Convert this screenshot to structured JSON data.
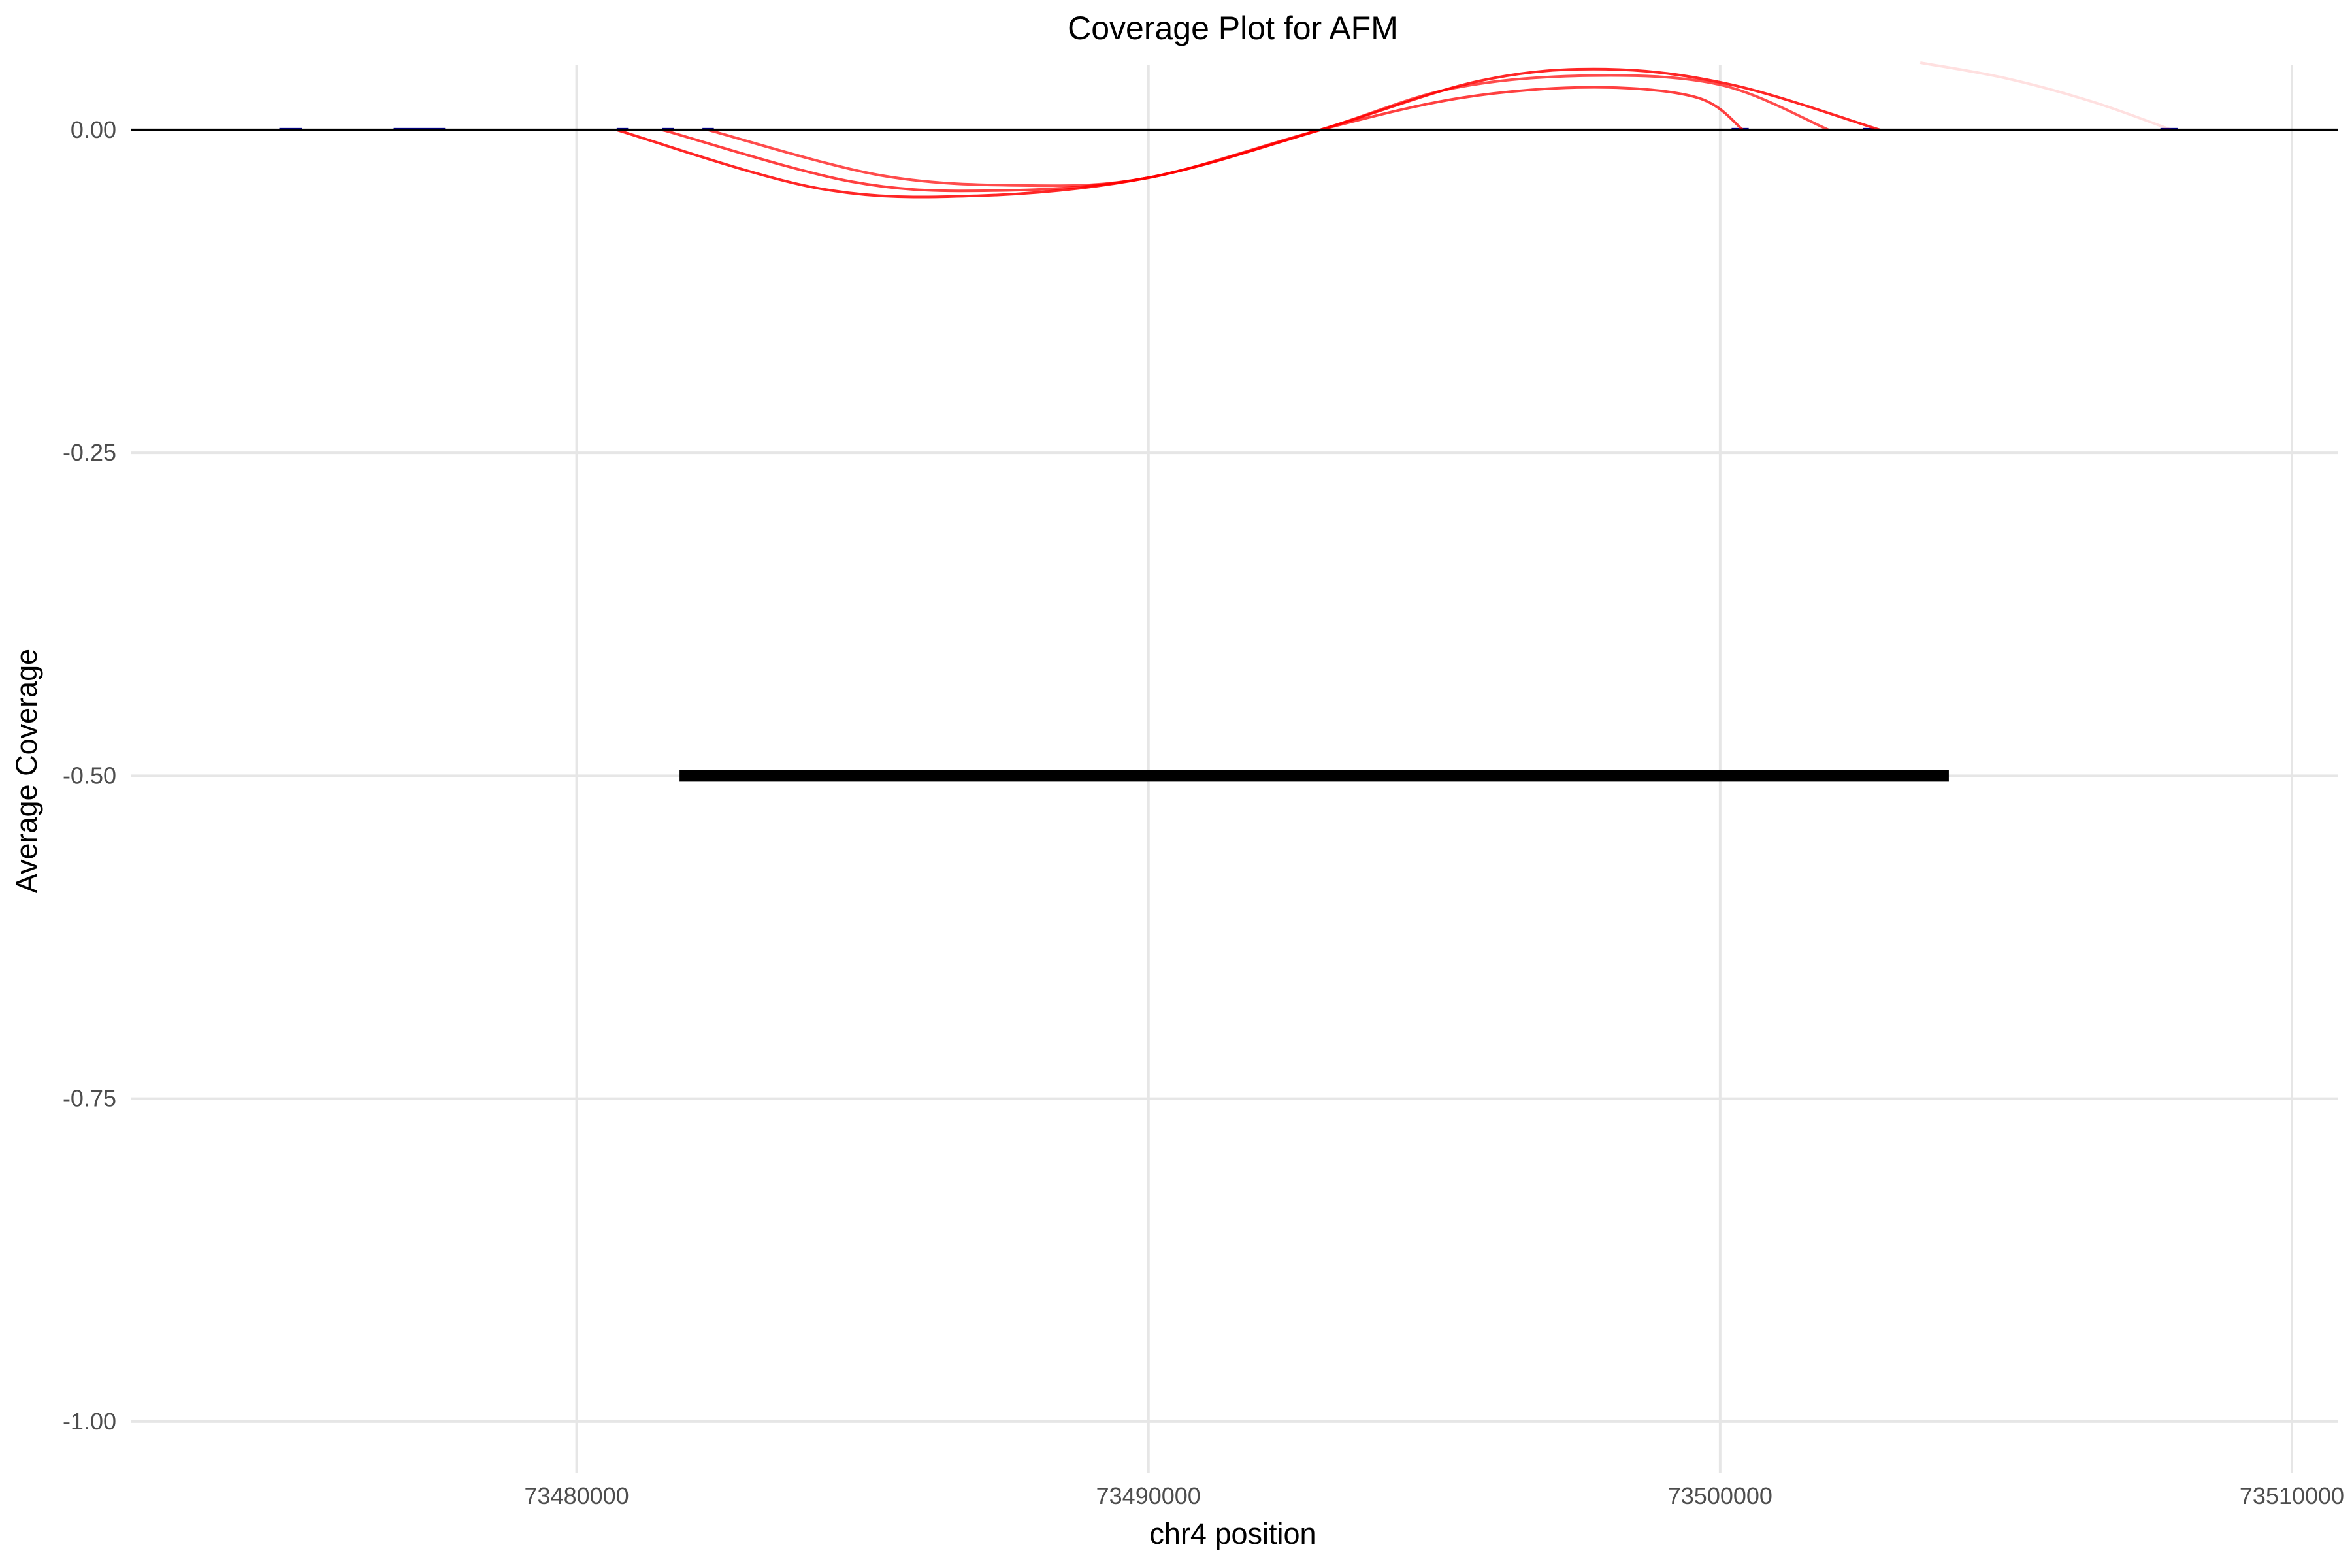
{
  "chart_data": {
    "type": "line",
    "title": "Coverage Plot for AFM",
    "xlabel": "chr4 position",
    "ylabel": "Average Coverage",
    "xlim": [
      73472200,
      73510800
    ],
    "ylim": [
      -1.04,
      0.05
    ],
    "x_ticks": [
      73480000,
      73490000,
      73500000,
      73510000
    ],
    "x_tick_labels": [
      "73480000",
      "73490000",
      "73500000",
      "73510000"
    ],
    "y_ticks": [
      0,
      -0.25,
      -0.5,
      -0.75,
      -1.0
    ],
    "y_tick_labels": [
      "0.00",
      "-0.25",
      "-0.50",
      "-0.75",
      "-1.00"
    ],
    "grid": true,
    "legend": "none",
    "baseline": {
      "y": 0,
      "color": "#000000"
    },
    "coverage_blocks": {
      "color": "#00008b",
      "ranges": [
        [
          73474800,
          73475200
        ],
        [
          73476800,
          73477700
        ],
        [
          73480700,
          73480900
        ],
        [
          73481500,
          73481700
        ],
        [
          73482200,
          73482400
        ],
        [
          73500200,
          73500500
        ],
        [
          73502500,
          73502700
        ],
        [
          73507700,
          73508000
        ]
      ]
    },
    "series": [
      {
        "color": "#ff0000",
        "opacity": 0.85,
        "points": [
          [
            73480700,
            0
          ],
          [
            73484200,
            -0.045
          ],
          [
            73487000,
            -0.051
          ],
          [
            73490000,
            -0.037
          ],
          [
            73493000,
            0
          ],
          [
            73495800,
            0.038
          ],
          [
            73498000,
            0.047
          ],
          [
            73500200,
            0.035
          ],
          [
            73502800,
            0
          ]
        ]
      },
      {
        "color": "#ff0000",
        "opacity": 0.75,
        "points": [
          [
            73481500,
            0
          ],
          [
            73484800,
            -0.04
          ],
          [
            73487300,
            -0.047
          ],
          [
            73490000,
            -0.037
          ],
          [
            73493000,
            0
          ],
          [
            73495500,
            0.025
          ],
          [
            73497800,
            0.033
          ],
          [
            73499600,
            0.025
          ],
          [
            73500400,
            0
          ]
        ]
      },
      {
        "color": "#ff0000",
        "opacity": 0.7,
        "points": [
          [
            73482300,
            0
          ],
          [
            73485300,
            -0.035
          ],
          [
            73487800,
            -0.043
          ],
          [
            73490000,
            -0.037
          ],
          [
            73493000,
            0
          ],
          [
            73495300,
            0.032
          ],
          [
            73497700,
            0.042
          ],
          [
            73500000,
            0.035
          ],
          [
            73501900,
            0
          ]
        ]
      },
      {
        "color": "#ff0000",
        "opacity": 0.12,
        "points": [
          [
            73503500,
            0.052
          ],
          [
            73505000,
            0.04
          ],
          [
            73506500,
            0.022
          ],
          [
            73507900,
            0
          ]
        ]
      }
    ],
    "gene_annotation": {
      "y": -0.5,
      "x_start": 73481800,
      "x_end": 73504000,
      "color": "#000000"
    }
  }
}
